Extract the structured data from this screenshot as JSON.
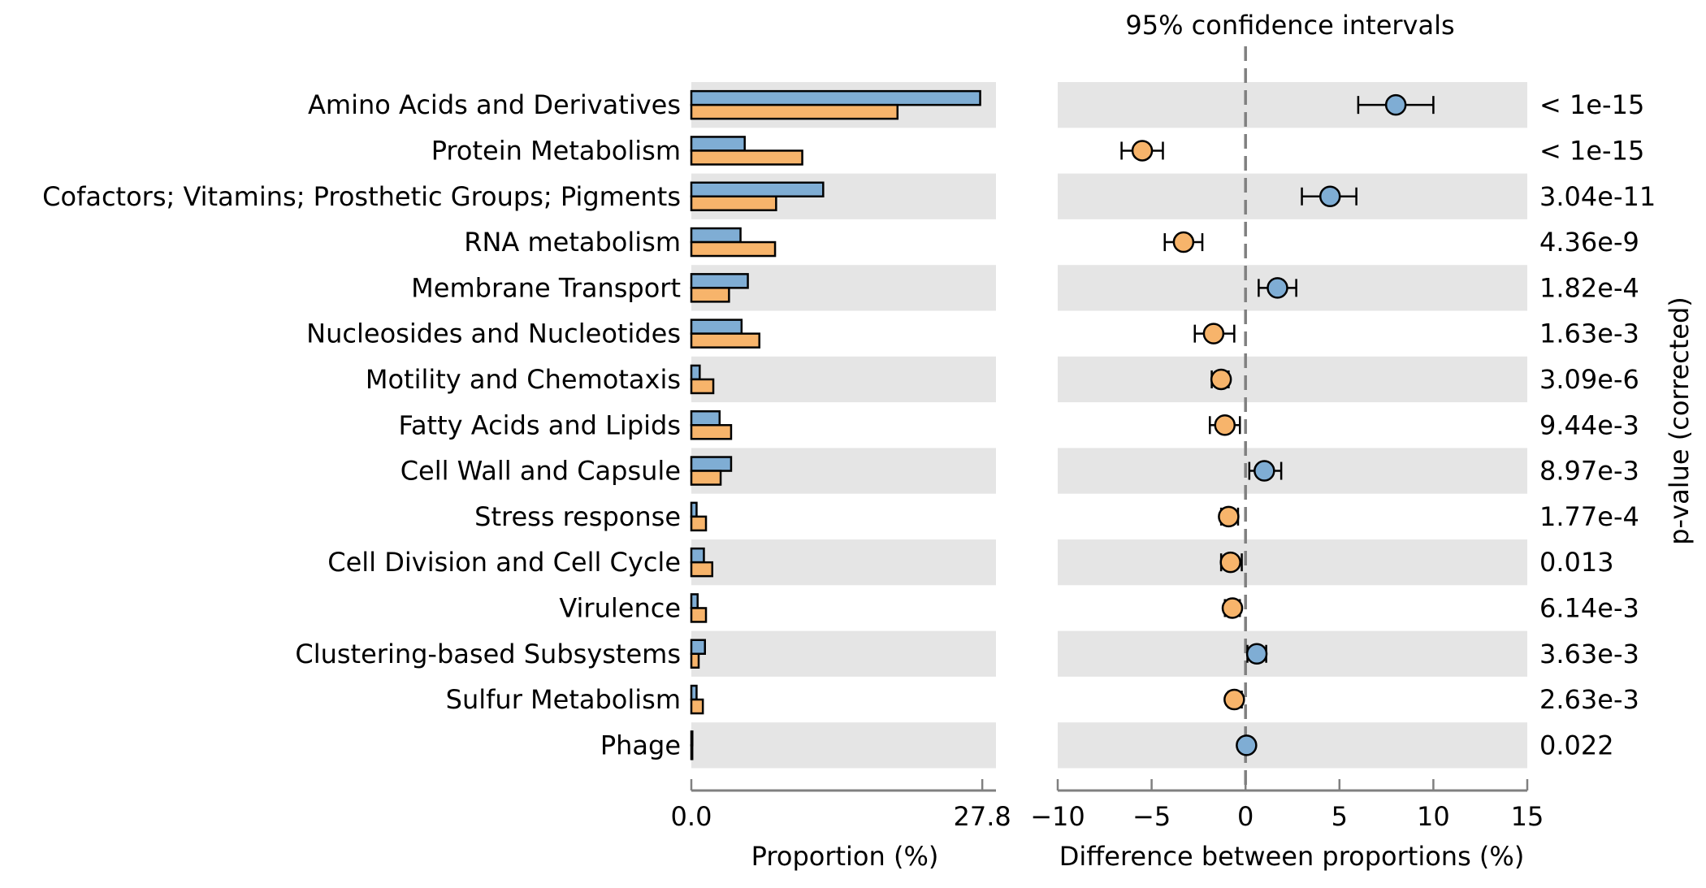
{
  "chart_data": {
    "type": "extended-error-bar",
    "title": "95% confidence intervals",
    "categories": [
      "Amino Acids and Derivatives",
      "Protein Metabolism",
      "Cofactors; Vitamins; Prosthetic Groups; Pigments",
      "RNA metabolism",
      "Membrane Transport",
      "Nucleosides and Nucleotides",
      "Motility and Chemotaxis",
      "Fatty Acids and Lipids",
      "Cell Wall and Capsule",
      "Stress response",
      "Cell Division and Cell Cycle",
      "Virulence",
      "Clustering-based Subsystems",
      "Sulfur Metabolism",
      "Phage"
    ],
    "proportion_panel": {
      "xlabel": "Proportion (%)",
      "xlim": [
        0,
        27.8
      ],
      "tick_labels": [
        "0.0",
        "27.8"
      ],
      "series": [
        {
          "color": "#7fadd4",
          "values": [
            27.6,
            5.1,
            12.6,
            4.7,
            5.4,
            4.8,
            0.8,
            2.7,
            3.8,
            0.5,
            1.2,
            0.6,
            1.3,
            0.5,
            0.1
          ]
        },
        {
          "color": "#f7b46b",
          "values": [
            19.7,
            10.6,
            8.1,
            8.0,
            3.6,
            6.5,
            2.1,
            3.8,
            2.8,
            1.4,
            2.0,
            1.4,
            0.7,
            1.1,
            0.05
          ]
        }
      ]
    },
    "difference_panel": {
      "xlabel": "Difference between proportions (%)",
      "xlim": [
        -10,
        15
      ],
      "ticks": [
        -10,
        -5,
        0,
        5,
        10,
        15
      ],
      "tick_labels": [
        "−10",
        "−5",
        "0",
        "5",
        "10",
        "15"
      ],
      "points": [
        {
          "diff": 8.0,
          "ci": [
            6.0,
            10.0
          ]
        },
        {
          "diff": -5.5,
          "ci": [
            -6.6,
            -4.4
          ]
        },
        {
          "diff": 4.5,
          "ci": [
            3.0,
            5.9
          ]
        },
        {
          "diff": -3.3,
          "ci": [
            -4.3,
            -2.3
          ]
        },
        {
          "diff": 1.7,
          "ci": [
            0.7,
            2.7
          ]
        },
        {
          "diff": -1.7,
          "ci": [
            -2.7,
            -0.6
          ]
        },
        {
          "diff": -1.3,
          "ci": [
            -1.8,
            -0.9
          ]
        },
        {
          "diff": -1.1,
          "ci": [
            -1.9,
            -0.3
          ]
        },
        {
          "diff": 1.0,
          "ci": [
            0.2,
            1.9
          ]
        },
        {
          "diff": -0.9,
          "ci": [
            -1.3,
            -0.4
          ]
        },
        {
          "diff": -0.8,
          "ci": [
            -1.3,
            -0.2
          ]
        },
        {
          "diff": -0.7,
          "ci": [
            -1.1,
            -0.3
          ]
        },
        {
          "diff": 0.6,
          "ci": [
            0.1,
            1.1
          ]
        },
        {
          "diff": -0.6,
          "ci": [
            -0.9,
            -0.2
          ]
        },
        {
          "diff": 0.05,
          "ci": [
            0.0,
            0.1
          ]
        }
      ],
      "positive_color": "#7fadd4",
      "negative_color": "#f7b46b"
    },
    "pvalues": {
      "label": "p-value (corrected)",
      "values": [
        "< 1e-15",
        "< 1e-15",
        "3.04e-11",
        "4.36e-9",
        "1.82e-4",
        "1.63e-3",
        "3.09e-6",
        "9.44e-3",
        "8.97e-3",
        "1.77e-4",
        "0.013",
        "6.14e-3",
        "3.63e-3",
        "2.63e-3",
        "0.022"
      ]
    },
    "row_shading": "#e5e5e5",
    "grid": false,
    "legend": "none"
  }
}
